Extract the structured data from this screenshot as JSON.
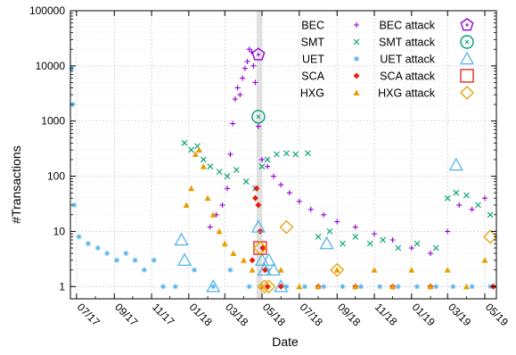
{
  "chart_data": {
    "type": "scatter",
    "xlabel": "Date",
    "ylabel": "#Transactions",
    "yscale": "log",
    "ylim": [
      0.6,
      100000
    ],
    "xlim": [
      "2017-06-21",
      "2019-05-20"
    ],
    "grid": true,
    "legend_position": "top-right",
    "y_ticks": [
      {
        "value": 1,
        "label": "1"
      },
      {
        "value": 10,
        "label": "10"
      },
      {
        "value": 100,
        "label": "100"
      },
      {
        "value": 1000,
        "label": "1000"
      },
      {
        "value": 10000,
        "label": "10000"
      },
      {
        "value": 100000,
        "label": "100000"
      }
    ],
    "x_ticks": [
      {
        "value": "2017-07-01",
        "label": "07/17"
      },
      {
        "value": "2017-09-01",
        "label": "09/17"
      },
      {
        "value": "2017-11-01",
        "label": "11/17"
      },
      {
        "value": "2018-01-01",
        "label": "01/18"
      },
      {
        "value": "2018-03-01",
        "label": "03/18"
      },
      {
        "value": "2018-05-01",
        "label": "05/18"
      },
      {
        "value": "2018-07-01",
        "label": "07/18"
      },
      {
        "value": "2018-09-01",
        "label": "09/18"
      },
      {
        "value": "2018-11-01",
        "label": "11/18"
      },
      {
        "value": "2019-01-01",
        "label": "01/19"
      },
      {
        "value": "2019-03-01",
        "label": "03/19"
      },
      {
        "value": "2019-05-01",
        "label": "05/19"
      }
    ],
    "highlight_band": [
      "2018-04-22",
      "2018-05-01"
    ],
    "series": [
      {
        "name": "BEC",
        "color": "#9400d3",
        "marker": "plus",
        "points": [
          {
            "x": "2018-02-05",
            "y": 12
          },
          {
            "x": "2018-02-15",
            "y": 20
          },
          {
            "x": "2018-02-25",
            "y": 30
          },
          {
            "x": "2018-03-05",
            "y": 60
          },
          {
            "x": "2018-03-10",
            "y": 250
          },
          {
            "x": "2018-03-14",
            "y": 900
          },
          {
            "x": "2018-03-18",
            "y": 2500
          },
          {
            "x": "2018-03-22",
            "y": 4000
          },
          {
            "x": "2018-03-26",
            "y": 3000
          },
          {
            "x": "2018-03-30",
            "y": 6000
          },
          {
            "x": "2018-04-03",
            "y": 9000
          },
          {
            "x": "2018-04-07",
            "y": 12000
          },
          {
            "x": "2018-04-10",
            "y": 20000
          },
          {
            "x": "2018-04-14",
            "y": 18000
          },
          {
            "x": "2018-04-17",
            "y": 10000
          },
          {
            "x": "2018-04-20",
            "y": 5000
          },
          {
            "x": "2018-04-25",
            "y": 800
          },
          {
            "x": "2018-05-01",
            "y": 200
          },
          {
            "x": "2018-05-10",
            "y": 150
          },
          {
            "x": "2018-05-20",
            "y": 100
          },
          {
            "x": "2018-06-01",
            "y": 70
          },
          {
            "x": "2018-06-15",
            "y": 50
          },
          {
            "x": "2018-07-01",
            "y": 35
          },
          {
            "x": "2018-07-20",
            "y": 25
          },
          {
            "x": "2018-08-10",
            "y": 20
          },
          {
            "x": "2018-09-01",
            "y": 15
          },
          {
            "x": "2018-10-01",
            "y": 12
          },
          {
            "x": "2018-11-01",
            "y": 9
          },
          {
            "x": "2018-12-01",
            "y": 7
          },
          {
            "x": "2019-01-01",
            "y": 5
          },
          {
            "x": "2019-02-01",
            "y": 4
          },
          {
            "x": "2019-03-01",
            "y": 10
          },
          {
            "x": "2019-03-20",
            "y": 30
          },
          {
            "x": "2019-04-10",
            "y": 25
          },
          {
            "x": "2019-05-01",
            "y": 40
          }
        ]
      },
      {
        "name": "SMT",
        "color": "#009e73",
        "marker": "x",
        "points": [
          {
            "x": "2017-12-25",
            "y": 400
          },
          {
            "x": "2018-01-05",
            "y": 300
          },
          {
            "x": "2018-01-15",
            "y": 350
          },
          {
            "x": "2018-01-25",
            "y": 200
          },
          {
            "x": "2018-02-05",
            "y": 150
          },
          {
            "x": "2018-02-20",
            "y": 120
          },
          {
            "x": "2018-03-05",
            "y": 100
          },
          {
            "x": "2018-03-20",
            "y": 130
          },
          {
            "x": "2018-04-05",
            "y": 80
          },
          {
            "x": "2018-04-20",
            "y": 60
          },
          {
            "x": "2018-05-01",
            "y": 150
          },
          {
            "x": "2018-05-10",
            "y": 200
          },
          {
            "x": "2018-05-25",
            "y": 250
          },
          {
            "x": "2018-06-10",
            "y": 260
          },
          {
            "x": "2018-06-25",
            "y": 250
          },
          {
            "x": "2018-07-15",
            "y": 260
          },
          {
            "x": "2018-08-01",
            "y": 8
          },
          {
            "x": "2018-08-20",
            "y": 10
          },
          {
            "x": "2018-09-10",
            "y": 6
          },
          {
            "x": "2018-10-01",
            "y": 8
          },
          {
            "x": "2018-10-25",
            "y": 6
          },
          {
            "x": "2018-11-15",
            "y": 7
          },
          {
            "x": "2018-12-10",
            "y": 5
          },
          {
            "x": "2019-01-10",
            "y": 6
          },
          {
            "x": "2019-02-10",
            "y": 5
          },
          {
            "x": "2019-03-01",
            "y": 40
          },
          {
            "x": "2019-03-15",
            "y": 50
          },
          {
            "x": "2019-04-01",
            "y": 45
          },
          {
            "x": "2019-04-20",
            "y": 30
          },
          {
            "x": "2019-05-10",
            "y": 20
          }
        ]
      },
      {
        "name": "UET",
        "color": "#56b4e9",
        "marker": "star",
        "points": [
          {
            "x": "2017-06-23",
            "y": 9000
          },
          {
            "x": "2017-06-25",
            "y": 2000
          },
          {
            "x": "2017-06-27",
            "y": 30
          },
          {
            "x": "2017-07-05",
            "y": 8
          },
          {
            "x": "2017-07-20",
            "y": 6
          },
          {
            "x": "2017-08-05",
            "y": 5
          },
          {
            "x": "2017-08-20",
            "y": 4
          },
          {
            "x": "2017-09-05",
            "y": 3
          },
          {
            "x": "2017-09-20",
            "y": 4
          },
          {
            "x": "2017-10-05",
            "y": 3
          },
          {
            "x": "2017-10-20",
            "y": 2
          },
          {
            "x": "2017-11-05",
            "y": 3
          },
          {
            "x": "2017-11-20",
            "y": 1
          },
          {
            "x": "2017-12-10",
            "y": 1
          },
          {
            "x": "2018-01-10",
            "y": 2
          },
          {
            "x": "2018-02-10",
            "y": 1
          },
          {
            "x": "2018-03-10",
            "y": 2
          },
          {
            "x": "2018-04-10",
            "y": 1
          },
          {
            "x": "2018-05-10",
            "y": 2
          },
          {
            "x": "2018-06-10",
            "y": 1
          },
          {
            "x": "2018-07-10",
            "y": 1
          },
          {
            "x": "2018-08-10",
            "y": 1
          },
          {
            "x": "2018-09-10",
            "y": 1
          },
          {
            "x": "2018-10-10",
            "y": 1
          },
          {
            "x": "2018-11-10",
            "y": 1
          },
          {
            "x": "2018-12-10",
            "y": 1
          },
          {
            "x": "2019-01-10",
            "y": 1
          },
          {
            "x": "2019-02-10",
            "y": 1
          },
          {
            "x": "2019-03-10",
            "y": 1
          },
          {
            "x": "2019-04-10",
            "y": 1
          },
          {
            "x": "2019-05-10",
            "y": 1
          }
        ]
      },
      {
        "name": "SCA",
        "color": "#e51e10",
        "marker": "diamond",
        "points": [
          {
            "x": "2018-04-15",
            "y": 3
          },
          {
            "x": "2018-04-20",
            "y": 40
          },
          {
            "x": "2018-04-22",
            "y": 60
          },
          {
            "x": "2018-04-25",
            "y": 30
          },
          {
            "x": "2018-04-28",
            "y": 10
          },
          {
            "x": "2018-05-02",
            "y": 5
          },
          {
            "x": "2018-05-06",
            "y": 2
          },
          {
            "x": "2018-05-10",
            "y": 1
          },
          {
            "x": "2018-06-01",
            "y": 1
          },
          {
            "x": "2018-08-01",
            "y": 1
          },
          {
            "x": "2018-10-01",
            "y": 1
          },
          {
            "x": "2018-12-01",
            "y": 1
          },
          {
            "x": "2019-02-01",
            "y": 1
          },
          {
            "x": "2019-05-15",
            "y": 1
          }
        ]
      },
      {
        "name": "HXG",
        "color": "#e69f00",
        "marker": "triangle",
        "points": [
          {
            "x": "2017-12-28",
            "y": 30
          },
          {
            "x": "2018-01-05",
            "y": 60
          },
          {
            "x": "2018-01-12",
            "y": 250
          },
          {
            "x": "2018-01-18",
            "y": 300
          },
          {
            "x": "2018-01-25",
            "y": 150
          },
          {
            "x": "2018-02-01",
            "y": 40
          },
          {
            "x": "2018-02-10",
            "y": 20
          },
          {
            "x": "2018-02-20",
            "y": 10
          },
          {
            "x": "2018-03-01",
            "y": 6
          },
          {
            "x": "2018-03-15",
            "y": 4
          },
          {
            "x": "2018-04-01",
            "y": 3
          },
          {
            "x": "2018-04-15",
            "y": 2
          },
          {
            "x": "2018-05-01",
            "y": 1
          },
          {
            "x": "2018-06-01",
            "y": 2
          },
          {
            "x": "2018-07-01",
            "y": 1
          },
          {
            "x": "2018-08-01",
            "y": 1
          },
          {
            "x": "2018-09-01",
            "y": 2
          },
          {
            "x": "2018-10-01",
            "y": 1
          },
          {
            "x": "2018-11-01",
            "y": 2
          },
          {
            "x": "2018-12-01",
            "y": 1
          },
          {
            "x": "2019-01-01",
            "y": 2
          },
          {
            "x": "2019-02-01",
            "y": 1
          },
          {
            "x": "2019-03-01",
            "y": 2
          },
          {
            "x": "2019-04-01",
            "y": 1
          },
          {
            "x": "2019-05-01",
            "y": 3
          }
        ]
      },
      {
        "name": "BEC attack",
        "color": "#9400d3",
        "marker": "pentagon-open",
        "points": [
          {
            "x": "2018-04-25",
            "y": 16000
          }
        ]
      },
      {
        "name": "SMT attack",
        "color": "#009e73",
        "marker": "circle-open",
        "points": [
          {
            "x": "2018-04-25",
            "y": 1200
          }
        ]
      },
      {
        "name": "UET attack",
        "color": "#56b4e9",
        "marker": "triangle-open",
        "points": [
          {
            "x": "2017-12-20",
            "y": 7
          },
          {
            "x": "2017-12-25",
            "y": 3
          },
          {
            "x": "2018-02-10",
            "y": 1
          },
          {
            "x": "2018-04-25",
            "y": 12
          },
          {
            "x": "2018-05-01",
            "y": 3
          },
          {
            "x": "2018-05-05",
            "y": 2
          },
          {
            "x": "2018-05-12",
            "y": 3
          },
          {
            "x": "2018-05-20",
            "y": 2
          },
          {
            "x": "2018-06-01",
            "y": 1
          },
          {
            "x": "2018-08-15",
            "y": 6
          },
          {
            "x": "2019-03-15",
            "y": 160
          }
        ]
      },
      {
        "name": "SCA attack",
        "color": "#e51e10",
        "marker": "square-open",
        "points": [
          {
            "x": "2018-04-28",
            "y": 5
          }
        ]
      },
      {
        "name": "HXG attack",
        "color": "#e69f00",
        "marker": "diamond-open",
        "points": [
          {
            "x": "2018-04-28",
            "y": 5
          },
          {
            "x": "2018-05-05",
            "y": 1
          },
          {
            "x": "2018-05-12",
            "y": 1
          },
          {
            "x": "2018-06-10",
            "y": 12
          },
          {
            "x": "2018-09-01",
            "y": 2
          },
          {
            "x": "2019-05-10",
            "y": 8
          }
        ]
      }
    ],
    "legend": [
      {
        "label": "BEC",
        "series": "BEC"
      },
      {
        "label": "BEC attack",
        "series": "BEC attack"
      },
      {
        "label": "SMT",
        "series": "SMT"
      },
      {
        "label": "SMT attack",
        "series": "SMT attack"
      },
      {
        "label": "UET",
        "series": "UET"
      },
      {
        "label": "UET attack",
        "series": "UET attack"
      },
      {
        "label": "SCA",
        "series": "SCA"
      },
      {
        "label": "SCA attack",
        "series": "SCA attack"
      },
      {
        "label": "HXG",
        "series": "HXG"
      },
      {
        "label": "HXG attack",
        "series": "HXG attack"
      }
    ]
  }
}
